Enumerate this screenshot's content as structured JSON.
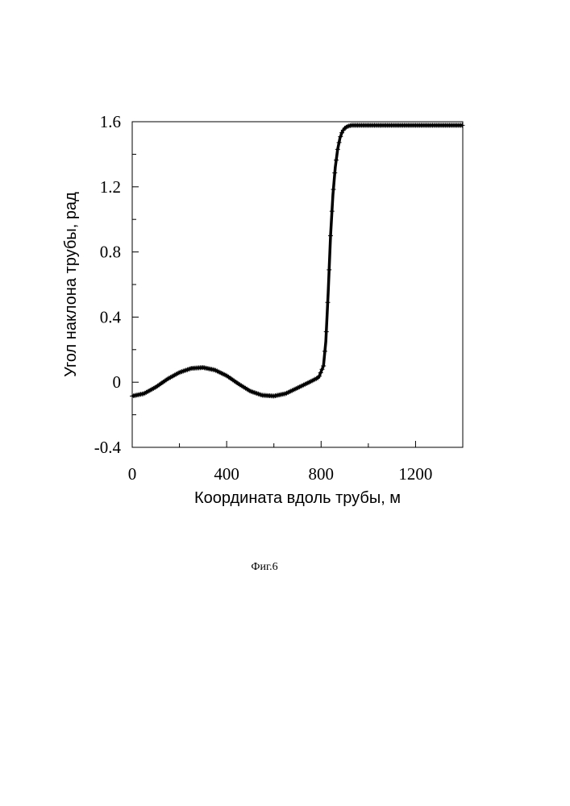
{
  "chart_data": {
    "type": "line",
    "xlabel": "Координата вдоль трубы, м",
    "ylabel": "Угол наклона трубы, рад",
    "xlim": [
      0,
      1400
    ],
    "ylim": [
      -0.4,
      1.6
    ],
    "x_ticks": [
      "0",
      "400",
      "800",
      "1200"
    ],
    "y_ticks": [
      "-0.4",
      "0",
      "0.4",
      "0.8",
      "1.2",
      "1.6"
    ],
    "grid": false,
    "marker": "+",
    "series": [
      {
        "color": "#000000",
        "x": [
          0,
          50,
          100,
          150,
          200,
          250,
          300,
          350,
          400,
          450,
          500,
          550,
          600,
          650,
          700,
          750,
          790,
          810,
          820,
          830,
          840,
          850,
          860,
          870,
          880,
          890,
          900,
          910,
          920,
          930,
          940,
          960,
          1000,
          1100,
          1200,
          1300,
          1400
        ],
        "y": [
          -0.085,
          -0.07,
          -0.03,
          0.02,
          0.06,
          0.085,
          0.09,
          0.075,
          0.04,
          -0.01,
          -0.055,
          -0.08,
          -0.085,
          -0.07,
          -0.035,
          0.0,
          0.03,
          0.1,
          0.25,
          0.55,
          0.9,
          1.15,
          1.32,
          1.43,
          1.5,
          1.54,
          1.56,
          1.57,
          1.575,
          1.578,
          1.578,
          1.578,
          1.578,
          1.578,
          1.578,
          1.578,
          1.578
        ]
      }
    ]
  },
  "caption": "Фиг.6"
}
